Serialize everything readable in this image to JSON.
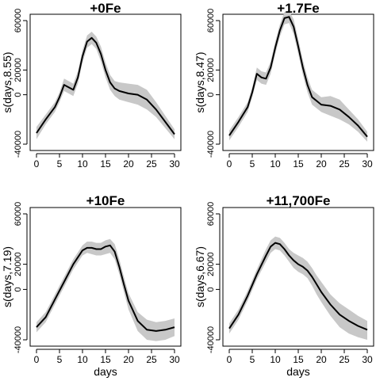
{
  "chart_data": [
    {
      "type": "line",
      "title": "+0Fe",
      "xlabel": "",
      "ylabel": "s(days,8.55)",
      "xlim": [
        0,
        30
      ],
      "ylim": [
        -40000,
        60000
      ],
      "x_ticks": [
        0,
        5,
        10,
        15,
        20,
        25,
        30
      ],
      "y_ticks": [
        -40000,
        0,
        20000,
        60000
      ],
      "x_tick_labels": [
        "0",
        "5",
        "10",
        "15",
        "20",
        "25",
        "30"
      ],
      "y_tick_labels": [
        "-40000",
        "0",
        "20000",
        "60000"
      ],
      "grid": false,
      "series": [
        {
          "x": [
            0,
            2,
            4,
            5,
            6,
            7,
            8,
            9,
            10,
            11,
            12,
            13,
            14,
            15,
            16,
            17,
            18,
            20,
            22,
            24,
            26,
            28,
            30
          ],
          "y": [
            -31000,
            -20000,
            -10000,
            -2000,
            8000,
            6000,
            4000,
            14000,
            31000,
            43000,
            46000,
            42000,
            33000,
            20000,
            10000,
            5000,
            3000,
            1000,
            0,
            -4000,
            -12000,
            -22000,
            -32000
          ],
          "lower": [
            -36000,
            -24000,
            -14000,
            -6000,
            3000,
            1000,
            -1000,
            9000,
            26000,
            38000,
            41000,
            37000,
            27000,
            14000,
            4000,
            -1000,
            -4000,
            -6000,
            -8000,
            -12000,
            -18000,
            -27000,
            -36000
          ],
          "upper": [
            -26000,
            -16000,
            -6000,
            2000,
            13000,
            11000,
            9000,
            19000,
            36000,
            48000,
            51000,
            47000,
            39000,
            26000,
            16000,
            11000,
            10000,
            9000,
            8000,
            4000,
            -6000,
            -17000,
            -28000
          ]
        }
      ]
    },
    {
      "type": "line",
      "title": "+1.7Fe",
      "xlabel": "",
      "ylabel": "s(days,8.47)",
      "xlim": [
        0,
        30
      ],
      "ylim": [
        -40000,
        60000
      ],
      "x_ticks": [
        0,
        5,
        10,
        15,
        20,
        25,
        30
      ],
      "y_ticks": [
        -40000,
        0,
        20000,
        60000
      ],
      "x_tick_labels": [
        "0",
        "5",
        "10",
        "15",
        "20",
        "25",
        "30"
      ],
      "y_tick_labels": [
        "-40000",
        "0",
        "20000",
        "60000"
      ],
      "grid": false,
      "series": [
        {
          "x": [
            0,
            2,
            4,
            5,
            6,
            7,
            8,
            9,
            10,
            11,
            12,
            13,
            14,
            15,
            16,
            17,
            18,
            20,
            22,
            24,
            26,
            28,
            30
          ],
          "y": [
            -33000,
            -22000,
            -10000,
            2000,
            17000,
            14000,
            13000,
            22000,
            38000,
            52000,
            62000,
            63000,
            55000,
            39000,
            22000,
            8000,
            -2000,
            -8000,
            -9000,
            -12000,
            -18000,
            -25000,
            -34000
          ],
          "lower": [
            -37000,
            -26000,
            -14000,
            -2000,
            12000,
            9000,
            8000,
            17000,
            33000,
            47000,
            57000,
            58000,
            49000,
            33000,
            16000,
            2000,
            -8000,
            -14000,
            -17000,
            -20000,
            -24000,
            -30000,
            -38000
          ],
          "upper": [
            -29000,
            -18000,
            -6000,
            6000,
            22000,
            19000,
            18000,
            27000,
            43000,
            57000,
            67000,
            68000,
            61000,
            45000,
            28000,
            14000,
            4000,
            -2000,
            -1000,
            -4000,
            -12000,
            -20000,
            -30000
          ]
        }
      ]
    },
    {
      "type": "line",
      "title": "+10Fe",
      "xlabel": "days",
      "ylabel": "s(days,7.19)",
      "xlim": [
        0,
        30
      ],
      "ylim": [
        -40000,
        60000
      ],
      "x_ticks": [
        0,
        5,
        10,
        15,
        20,
        25,
        30
      ],
      "y_ticks": [
        -40000,
        0,
        20000,
        60000
      ],
      "x_tick_labels": [
        "0",
        "5",
        "10",
        "15",
        "20",
        "25",
        "30"
      ],
      "y_tick_labels": [
        "-40000",
        "0",
        "20000",
        "60000"
      ],
      "grid": false,
      "series": [
        {
          "x": [
            0,
            2,
            4,
            6,
            8,
            10,
            11,
            12,
            13,
            14,
            15,
            16,
            17,
            18,
            19,
            20,
            22,
            24,
            26,
            28,
            30
          ],
          "y": [
            -30000,
            -22000,
            -8000,
            6000,
            20000,
            31000,
            33000,
            33000,
            32000,
            32000,
            34000,
            35000,
            30000,
            18000,
            4000,
            -9000,
            -25000,
            -32000,
            -33000,
            -32000,
            -30000
          ],
          "lower": [
            -34000,
            -26000,
            -12000,
            2000,
            16000,
            27000,
            29000,
            28000,
            27000,
            27000,
            28000,
            29000,
            24000,
            12000,
            -2000,
            -16000,
            -33000,
            -40000,
            -41000,
            -40000,
            -37000
          ],
          "upper": [
            -26000,
            -18000,
            -4000,
            10000,
            24000,
            35000,
            38000,
            38000,
            37000,
            37000,
            39000,
            40000,
            36000,
            24000,
            10000,
            -3000,
            -18000,
            -24000,
            -26000,
            -25000,
            -23000
          ]
        }
      ]
    },
    {
      "type": "line",
      "title": "+11,700Fe",
      "xlabel": "days",
      "ylabel": "s(days,6.67)",
      "xlim": [
        0,
        30
      ],
      "ylim": [
        -40000,
        60000
      ],
      "x_ticks": [
        0,
        5,
        10,
        15,
        20,
        25,
        30
      ],
      "y_ticks": [
        -40000,
        0,
        20000,
        60000
      ],
      "x_tick_labels": [
        "0",
        "5",
        "10",
        "15",
        "20",
        "25",
        "30"
      ],
      "y_tick_labels": [
        "-40000",
        "0",
        "20000",
        "60000"
      ],
      "grid": false,
      "series": [
        {
          "x": [
            0,
            2,
            4,
            6,
            8,
            9,
            10,
            11,
            12,
            13,
            14,
            15,
            16,
            17,
            18,
            19,
            20,
            22,
            24,
            26,
            28,
            30
          ],
          "y": [
            -31000,
            -20000,
            -5000,
            12000,
            27000,
            34000,
            37000,
            36000,
            32000,
            27000,
            23000,
            20000,
            18000,
            15000,
            10000,
            4000,
            -2000,
            -12000,
            -20000,
            -25000,
            -29000,
            -32000
          ],
          "lower": [
            -35000,
            -24000,
            -9000,
            8000,
            22000,
            29000,
            32000,
            31000,
            27000,
            22000,
            17000,
            14000,
            12000,
            9000,
            3000,
            -4000,
            -10000,
            -21000,
            -30000,
            -35000,
            -38000,
            -40000
          ],
          "upper": [
            -27000,
            -16000,
            -1000,
            16000,
            32000,
            39000,
            42000,
            41000,
            37000,
            32000,
            29000,
            27000,
            25000,
            22000,
            17000,
            11000,
            6000,
            -4000,
            -11000,
            -16000,
            -21000,
            -25000
          ]
        }
      ]
    }
  ]
}
